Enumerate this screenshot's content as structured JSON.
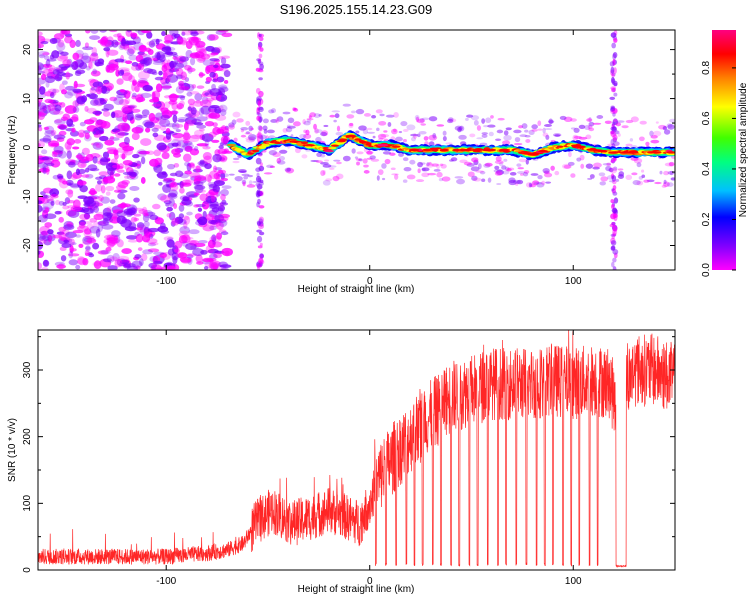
{
  "title": "S196.2025.155.14.23.G09",
  "chart_data": [
    {
      "type": "heatmap",
      "xlabel": "Height of straight line (km)",
      "ylabel": "Frequency (Hz)",
      "xlim": [
        -163,
        150
      ],
      "ylim": [
        -25,
        24
      ],
      "x_ticks": [
        -100,
        0,
        100
      ],
      "y_ticks": [
        20,
        10,
        0,
        -10,
        -20
      ],
      "colorbar": {
        "label": "Normalized spectral amplitude",
        "range": [
          0,
          0.95
        ],
        "ticks": [
          0.0,
          0.2,
          0.4,
          0.6,
          0.8
        ],
        "colors": [
          "#ff00ff",
          "#8000ff",
          "#0000ff",
          "#00c0ff",
          "#00ff80",
          "#40ff00",
          "#ffff00",
          "#ff8000",
          "#ff0000",
          "#ff0080"
        ]
      },
      "features": {
        "noise_region_x": [
          -163,
          -70
        ],
        "signal_start_x": -68,
        "signal_track_freq": [
          [
            -68,
            0.5
          ],
          [
            -60,
            -1.5
          ],
          [
            -50,
            1.0
          ],
          [
            -40,
            1.5
          ],
          [
            -30,
            0.5
          ],
          [
            -20,
            -0.5
          ],
          [
            -10,
            2.5
          ],
          [
            0,
            0.5
          ],
          [
            10,
            0.5
          ],
          [
            20,
            -0.5
          ],
          [
            40,
            -0.5
          ],
          [
            60,
            -0.5
          ],
          [
            70,
            -0.5
          ],
          [
            80,
            -1.5
          ],
          [
            90,
            0.0
          ],
          [
            100,
            0.5
          ],
          [
            110,
            -0.5
          ],
          [
            120,
            -1.0
          ],
          [
            130,
            -1.0
          ],
          [
            150,
            -1.0
          ]
        ],
        "vertical_stripes_x": [
          -54,
          120
        ]
      }
    },
    {
      "type": "line",
      "xlabel": "Height of straight line (km)",
      "ylabel": "SNR (10 * v/v)",
      "xlim": [
        -163,
        150
      ],
      "ylim": [
        0,
        360
      ],
      "x_ticks": [
        -100,
        0,
        100
      ],
      "y_ticks": [
        0,
        100,
        200,
        300
      ],
      "series": [
        {
          "color": "#ff0000",
          "trend": [
            [
              -163,
              20
            ],
            [
              -130,
              20
            ],
            [
              -100,
              20
            ],
            [
              -80,
              25
            ],
            [
              -70,
              30
            ],
            [
              -62,
              40
            ],
            [
              -56,
              70
            ],
            [
              -48,
              90
            ],
            [
              -38,
              70
            ],
            [
              -28,
              80
            ],
            [
              -20,
              90
            ],
            [
              -12,
              80
            ],
            [
              -5,
              70
            ],
            [
              0,
              100
            ],
            [
              5,
              140
            ],
            [
              12,
              170
            ],
            [
              20,
              200
            ],
            [
              30,
              230
            ],
            [
              40,
              260
            ],
            [
              50,
              270
            ],
            [
              60,
              280
            ],
            [
              70,
              280
            ],
            [
              80,
              280
            ],
            [
              90,
              285
            ],
            [
              100,
              280
            ],
            [
              110,
              285
            ],
            [
              118,
              280
            ],
            [
              122,
              230
            ],
            [
              126,
              280
            ],
            [
              130,
              300
            ],
            [
              140,
              300
            ],
            [
              150,
              285
            ]
          ],
          "dropouts_x": [
            3,
            8,
            13,
            18,
            22,
            26,
            31,
            35,
            40,
            44,
            49,
            53,
            58,
            63,
            67,
            72,
            77,
            82,
            86,
            90,
            95,
            99,
            103,
            108,
            112
          ],
          "dropout_floor": 6,
          "flat_low_interval_x": [
            121,
            126
          ],
          "flat_low_value": 5
        }
      ]
    }
  ]
}
